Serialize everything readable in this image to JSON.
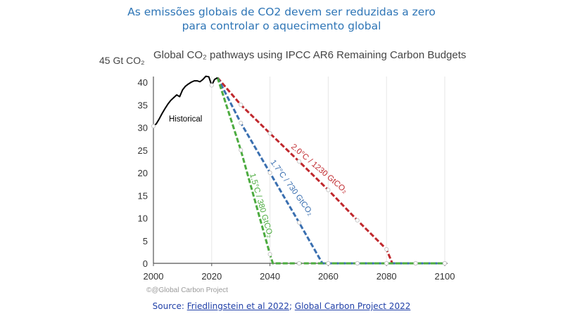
{
  "slide": {
    "title_line1": "As emissões globais de CO2 devem ser reduzidas a zero",
    "title_line2": "para controlar o aquecimento global"
  },
  "source": {
    "prefix": "Source: ",
    "link1": "Friedlingstein et al 2022",
    "separator": "; ",
    "link2": "Global Carbon Project 2022"
  },
  "chart_data": {
    "type": "line",
    "title": "Global CO₂ pathways using IPCC AR6 Remaining Carbon Budgets",
    "unit_label": "45 Gt CO₂",
    "credit": "©@Global Carbon Project",
    "xlim": [
      2000,
      2100
    ],
    "ylim": [
      0,
      45
    ],
    "x_ticks": [
      2000,
      2020,
      2040,
      2060,
      2080,
      2100
    ],
    "y_ticks": [
      0,
      5,
      10,
      15,
      20,
      25,
      30,
      35,
      40
    ],
    "grid": "vertical",
    "series": [
      {
        "name": "Historical",
        "color": "#000000",
        "style": "solid",
        "points": [
          [
            2000,
            30.3
          ],
          [
            2001,
            30.8
          ],
          [
            2002,
            31.9
          ],
          [
            2003,
            33.1
          ],
          [
            2004,
            34.2
          ],
          [
            2005,
            35.2
          ],
          [
            2006,
            36.0
          ],
          [
            2007,
            36.6
          ],
          [
            2008,
            37.2
          ],
          [
            2009,
            36.8
          ],
          [
            2010,
            38.3
          ],
          [
            2011,
            39.1
          ],
          [
            2012,
            39.6
          ],
          [
            2013,
            40.0
          ],
          [
            2014,
            40.3
          ],
          [
            2015,
            40.3
          ],
          [
            2016,
            40.1
          ],
          [
            2017,
            40.6
          ],
          [
            2018,
            41.3
          ],
          [
            2019,
            41.2
          ],
          [
            2020,
            39.3
          ],
          [
            2021,
            40.6
          ],
          [
            2022,
            41.0
          ]
        ]
      },
      {
        "name": "2.0°C / 1230 GtCO₂",
        "color": "#c0282d",
        "style": "dashed",
        "points": [
          [
            2022,
            41.0
          ],
          [
            2030,
            35.0
          ],
          [
            2040,
            28.7
          ],
          [
            2050,
            22.5
          ],
          [
            2060,
            16.2
          ],
          [
            2070,
            9.5
          ],
          [
            2080,
            3.1
          ],
          [
            2082,
            0
          ],
          [
            2090,
            0
          ],
          [
            2100,
            0
          ]
        ]
      },
      {
        "name": "1.7°C / 730 GtCO₂",
        "color": "#3a6fb0",
        "style": "dashed",
        "points": [
          [
            2022,
            41.0
          ],
          [
            2030,
            31.0
          ],
          [
            2040,
            20.0
          ],
          [
            2050,
            9.0
          ],
          [
            2058,
            0
          ],
          [
            2060,
            0
          ],
          [
            2070,
            0
          ],
          [
            2080,
            0
          ],
          [
            2090,
            0
          ],
          [
            2100,
            0
          ]
        ]
      },
      {
        "name": "1.5°C / 380 GtCO₂",
        "color": "#4cab3f",
        "style": "dashed",
        "points": [
          [
            2022,
            41.0
          ],
          [
            2030,
            25.0
          ],
          [
            2040,
            2.0
          ],
          [
            2041,
            0
          ],
          [
            2050,
            0
          ],
          [
            2060,
            0
          ],
          [
            2070,
            0
          ],
          [
            2080,
            0
          ],
          [
            2090,
            0
          ],
          [
            2100,
            0
          ]
        ]
      }
    ],
    "annotations": {
      "historical": "Historical",
      "red": "2.0°C / 1230 GtCO₂",
      "blue": "1.7°C / 730 GtCO₂",
      "green": "1.5°C / 380 GtCO₂"
    }
  }
}
